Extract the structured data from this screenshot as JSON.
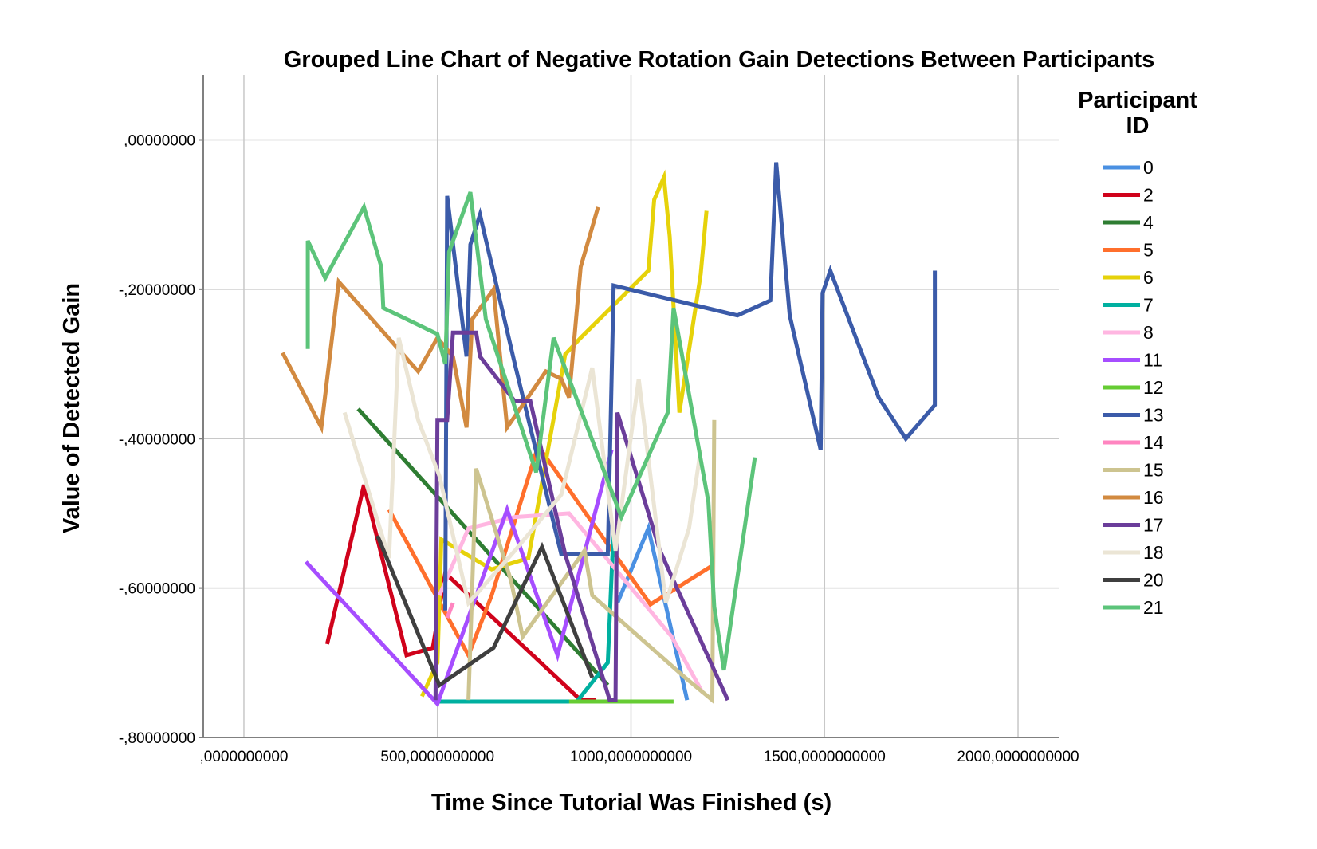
{
  "chart_data": {
    "type": "line",
    "title": "Grouped Line Chart of Negative Rotation Gain Detections Between Participants",
    "xlabel": "Time Since Tutorial Was Finished (s)",
    "ylabel": "Value of Detected Gain",
    "xlim": [
      -105,
      2105
    ],
    "ylim": [
      -0.8,
      0.087
    ],
    "x_ticks": [
      {
        "value": 0,
        "label": ",0000000000"
      },
      {
        "value": 500,
        "label": "500,0000000000"
      },
      {
        "value": 1000,
        "label": "1000,0000000000"
      },
      {
        "value": 1500,
        "label": "1500,0000000000"
      },
      {
        "value": 2000,
        "label": "2000,0000000000"
      }
    ],
    "y_ticks": [
      {
        "value": 0,
        "label": ",00000000"
      },
      {
        "value": -0.2,
        "label": "-,20000000"
      },
      {
        "value": -0.4,
        "label": "-,40000000"
      },
      {
        "value": -0.6,
        "label": "-,60000000"
      },
      {
        "value": -0.8,
        "label": "-,80000000"
      }
    ],
    "grid": true,
    "legend_position": "right",
    "legend_title_lines": [
      "Participant",
      "ID"
    ],
    "series": [
      {
        "name": "0",
        "color": "#4a90e2",
        "points": [
          [
            965,
            -0.62
          ],
          [
            1045,
            -0.52
          ],
          [
            1145,
            -0.75
          ]
        ]
      },
      {
        "name": "2",
        "color": "#d0021b",
        "points": [
          [
            215,
            -0.675
          ],
          [
            310,
            -0.462
          ],
          [
            420,
            -0.69
          ],
          [
            488,
            -0.68
          ],
          [
            520,
            -0.58
          ],
          [
            870,
            -0.75
          ],
          [
            910,
            -0.75
          ]
        ]
      },
      {
        "name": "4",
        "color": "#2e7d32",
        "points": [
          [
            295,
            -0.36
          ],
          [
            940,
            -0.73
          ]
        ]
      },
      {
        "name": "5",
        "color": "#ff6f2c",
        "points": [
          [
            375,
            -0.495
          ],
          [
            580,
            -0.69
          ],
          [
            640,
            -0.61
          ],
          [
            760,
            -0.41
          ],
          [
            1050,
            -0.622
          ],
          [
            1210,
            -0.57
          ]
        ]
      },
      {
        "name": "6",
        "color": "#e6d20a",
        "points": [
          [
            460,
            -0.745
          ],
          [
            500,
            -0.7
          ],
          [
            510,
            -0.535
          ],
          [
            640,
            -0.575
          ],
          [
            735,
            -0.56
          ],
          [
            830,
            -0.287
          ],
          [
            870,
            -0.265
          ],
          [
            1045,
            -0.175
          ],
          [
            1060,
            -0.08
          ],
          [
            1085,
            -0.05
          ],
          [
            1100,
            -0.13
          ],
          [
            1125,
            -0.365
          ],
          [
            1180,
            -0.18
          ],
          [
            1195,
            -0.095
          ]
        ]
      },
      {
        "name": "7",
        "color": "#00b0a0",
        "points": [
          [
            505,
            -0.752
          ],
          [
            860,
            -0.752
          ],
          [
            940,
            -0.7
          ],
          [
            955,
            -0.52
          ]
        ]
      },
      {
        "name": "8",
        "color": "#ffb6e1",
        "points": [
          [
            505,
            -0.61
          ],
          [
            580,
            -0.52
          ],
          [
            700,
            -0.505
          ],
          [
            840,
            -0.5
          ],
          [
            1105,
            -0.665
          ],
          [
            1185,
            -0.74
          ]
        ]
      },
      {
        "name": "11",
        "color": "#a64dff",
        "points": [
          [
            160,
            -0.565
          ],
          [
            500,
            -0.755
          ],
          [
            680,
            -0.495
          ],
          [
            810,
            -0.69
          ],
          [
            950,
            -0.415
          ]
        ]
      },
      {
        "name": "12",
        "color": "#66cc33",
        "points": [
          [
            840,
            -0.752
          ],
          [
            1110,
            -0.752
          ]
        ]
      },
      {
        "name": "13",
        "color": "#3b5ba9",
        "points": [
          [
            520,
            -0.63
          ],
          [
            525,
            -0.075
          ],
          [
            575,
            -0.29
          ],
          [
            585,
            -0.14
          ],
          [
            610,
            -0.1
          ],
          [
            700,
            -0.3
          ],
          [
            820,
            -0.555
          ],
          [
            940,
            -0.555
          ],
          [
            955,
            -0.195
          ],
          [
            1275,
            -0.235
          ],
          [
            1360,
            -0.215
          ],
          [
            1375,
            -0.03
          ],
          [
            1410,
            -0.235
          ],
          [
            1490,
            -0.415
          ],
          [
            1495,
            -0.205
          ],
          [
            1515,
            -0.175
          ],
          [
            1640,
            -0.345
          ],
          [
            1710,
            -0.4
          ],
          [
            1785,
            -0.355
          ],
          [
            1785,
            -0.175
          ]
        ]
      },
      {
        "name": "14",
        "color": "#ff85c0",
        "points": [
          [
            525,
            -0.64
          ],
          [
            540,
            -0.62
          ]
        ]
      },
      {
        "name": "15",
        "color": "#cdc490",
        "points": [
          [
            580,
            -0.75
          ],
          [
            600,
            -0.44
          ],
          [
            690,
            -0.59
          ],
          [
            720,
            -0.665
          ],
          [
            880,
            -0.55
          ],
          [
            900,
            -0.61
          ],
          [
            1140,
            -0.72
          ],
          [
            1210,
            -0.75
          ],
          [
            1215,
            -0.375
          ]
        ]
      },
      {
        "name": "16",
        "color": "#d28a40",
        "points": [
          [
            100,
            -0.285
          ],
          [
            200,
            -0.385
          ],
          [
            245,
            -0.19
          ],
          [
            450,
            -0.31
          ],
          [
            500,
            -0.265
          ],
          [
            540,
            -0.29
          ],
          [
            575,
            -0.385
          ],
          [
            590,
            -0.24
          ],
          [
            645,
            -0.2
          ],
          [
            680,
            -0.385
          ],
          [
            780,
            -0.31
          ],
          [
            820,
            -0.32
          ],
          [
            840,
            -0.345
          ],
          [
            870,
            -0.17
          ],
          [
            915,
            -0.09
          ]
        ]
      },
      {
        "name": "17",
        "color": "#6b3d9a",
        "points": [
          [
            495,
            -0.75
          ],
          [
            500,
            -0.375
          ],
          [
            525,
            -0.375
          ],
          [
            540,
            -0.258
          ],
          [
            600,
            -0.258
          ],
          [
            610,
            -0.29
          ],
          [
            700,
            -0.35
          ],
          [
            740,
            -0.35
          ],
          [
            830,
            -0.555
          ],
          [
            945,
            -0.75
          ],
          [
            960,
            -0.75
          ],
          [
            965,
            -0.365
          ],
          [
            1075,
            -0.55
          ],
          [
            1250,
            -0.75
          ]
        ]
      },
      {
        "name": "18",
        "color": "#ebe5d5",
        "points": [
          [
            260,
            -0.365
          ],
          [
            375,
            -0.56
          ],
          [
            400,
            -0.265
          ],
          [
            450,
            -0.375
          ],
          [
            505,
            -0.45
          ],
          [
            580,
            -0.62
          ],
          [
            700,
            -0.55
          ],
          [
            820,
            -0.475
          ],
          [
            900,
            -0.305
          ],
          [
            960,
            -0.55
          ],
          [
            1020,
            -0.32
          ],
          [
            1090,
            -0.62
          ],
          [
            1150,
            -0.52
          ],
          [
            1180,
            -0.415
          ]
        ]
      },
      {
        "name": "20",
        "color": "#3f3f3f",
        "points": [
          [
            345,
            -0.53
          ],
          [
            505,
            -0.73
          ],
          [
            645,
            -0.68
          ],
          [
            770,
            -0.545
          ],
          [
            900,
            -0.72
          ]
        ]
      },
      {
        "name": "21",
        "color": "#5cc47a",
        "points": [
          [
            165,
            -0.28
          ],
          [
            165,
            -0.135
          ],
          [
            210,
            -0.185
          ],
          [
            310,
            -0.09
          ],
          [
            355,
            -0.17
          ],
          [
            360,
            -0.225
          ],
          [
            500,
            -0.26
          ],
          [
            520,
            -0.3
          ],
          [
            530,
            -0.15
          ],
          [
            585,
            -0.07
          ],
          [
            625,
            -0.24
          ],
          [
            755,
            -0.445
          ],
          [
            800,
            -0.265
          ],
          [
            975,
            -0.505
          ],
          [
            1095,
            -0.365
          ],
          [
            1110,
            -0.225
          ],
          [
            1200,
            -0.485
          ],
          [
            1215,
            -0.625
          ],
          [
            1240,
            -0.71
          ],
          [
            1320,
            -0.425
          ]
        ]
      }
    ]
  }
}
